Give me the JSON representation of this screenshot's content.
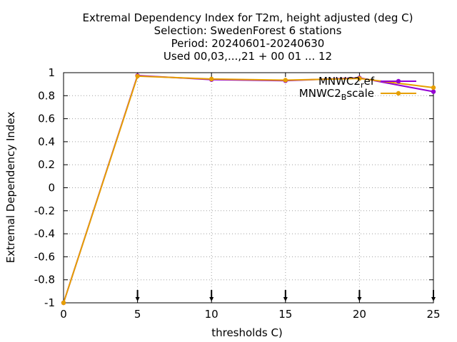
{
  "chart_data": {
    "type": "line",
    "title_lines": [
      "Extremal Dependency Index  for T2m, height adjusted (deg C)",
      "Selection: SwedenForest      6 stations",
      "Period: 20240601-20240630",
      "Used 00,03,...,21 + 00 01 ... 12"
    ],
    "xlabel": "thresholds C)",
    "ylabel": "Extremal Dependency Index",
    "xlim": [
      0,
      25
    ],
    "ylim": [
      -1,
      1
    ],
    "x_ticks": [
      "0",
      "5",
      "10",
      "15",
      "20",
      "25"
    ],
    "y_ticks": [
      "1",
      "0.8",
      "0.6",
      "0.4",
      "0.2",
      "0",
      "-0.2",
      "-0.4",
      "-0.6",
      "-0.8",
      "-1"
    ],
    "grid": true,
    "legend_position": "top-right",
    "series": [
      {
        "name_main": "MNWC2",
        "name_sub": "r",
        "name_tail": "ef",
        "color": "#9400d3",
        "x": [
          0,
          5,
          10,
          15,
          20,
          25
        ],
        "y": [
          -1,
          0.975,
          0.94,
          0.93,
          0.955,
          0.835
        ]
      },
      {
        "name_main": "MNWC2",
        "name_sub": "B",
        "name_tail": "scale",
        "color": "#e69f00",
        "x": [
          0,
          5,
          10,
          15,
          20,
          25
        ],
        "y": [
          -1,
          0.97,
          0.945,
          0.935,
          0.95,
          0.87
        ]
      }
    ],
    "marker_x": [
      5,
      10,
      15,
      20,
      25
    ]
  }
}
